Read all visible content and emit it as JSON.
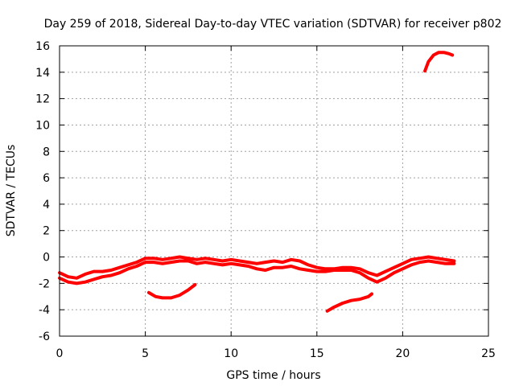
{
  "chart_data": {
    "type": "line",
    "title": "Day 259 of 2018, Sidereal Day-to-day VTEC variation (SDTVAR) for receiver p802",
    "xlabel": "GPS time / hours",
    "ylabel": "SDTVAR / TECUs",
    "xlim": [
      0,
      25
    ],
    "ylim": [
      -6,
      16
    ],
    "xticks": [
      0,
      5,
      10,
      15,
      20,
      25
    ],
    "yticks": [
      -6,
      -4,
      -2,
      0,
      2,
      4,
      6,
      8,
      10,
      12,
      14,
      16
    ],
    "grid": true,
    "color": "#ff0000",
    "series": [
      {
        "name": "main-band-upper",
        "x": [
          0.0,
          0.5,
          1.0,
          1.5,
          2.0,
          2.5,
          3.0,
          3.5,
          4.0,
          4.5,
          5.0,
          5.5,
          6.0,
          6.5,
          7.0,
          7.5,
          8.0,
          8.5,
          9.0,
          9.5,
          10.0,
          10.5,
          11.0,
          11.5,
          12.0,
          12.5,
          13.0,
          13.5,
          14.0,
          14.5,
          15.0,
          15.5,
          16.0,
          16.5,
          17.0,
          17.5,
          18.0,
          18.5,
          19.0,
          19.5,
          20.0,
          20.5,
          21.0,
          21.5,
          22.0,
          22.5,
          23.0
        ],
        "values": [
          -1.2,
          -1.5,
          -1.6,
          -1.3,
          -1.1,
          -1.1,
          -1.0,
          -0.8,
          -0.6,
          -0.4,
          -0.1,
          -0.1,
          -0.2,
          -0.1,
          0.0,
          -0.1,
          -0.2,
          -0.1,
          -0.2,
          -0.3,
          -0.2,
          -0.3,
          -0.4,
          -0.5,
          -0.4,
          -0.3,
          -0.4,
          -0.2,
          -0.3,
          -0.6,
          -0.8,
          -0.9,
          -0.9,
          -0.8,
          -0.8,
          -0.9,
          -1.2,
          -1.4,
          -1.1,
          -0.8,
          -0.5,
          -0.2,
          -0.1,
          0.0,
          -0.1,
          -0.2,
          -0.3
        ]
      },
      {
        "name": "main-band-lower",
        "x": [
          0.0,
          0.5,
          1.0,
          1.5,
          2.0,
          2.5,
          3.0,
          3.5,
          4.0,
          4.5,
          5.0,
          5.5,
          6.0,
          6.5,
          7.0,
          7.5,
          8.0,
          8.5,
          9.0,
          9.5,
          10.0,
          10.5,
          11.0,
          11.5,
          12.0,
          12.5,
          13.0,
          13.5,
          14.0,
          14.5,
          15.0,
          15.5,
          16.0,
          16.5,
          17.0,
          17.5,
          18.0,
          18.5,
          19.0,
          19.5,
          20.0,
          20.5,
          21.0,
          21.5,
          22.0,
          22.5,
          23.0
        ],
        "values": [
          -1.6,
          -1.9,
          -2.0,
          -1.9,
          -1.7,
          -1.5,
          -1.4,
          -1.2,
          -0.9,
          -0.7,
          -0.4,
          -0.4,
          -0.5,
          -0.4,
          -0.3,
          -0.3,
          -0.5,
          -0.4,
          -0.5,
          -0.6,
          -0.5,
          -0.6,
          -0.7,
          -0.9,
          -1.0,
          -0.8,
          -0.8,
          -0.7,
          -0.9,
          -1.0,
          -1.1,
          -1.1,
          -1.0,
          -1.0,
          -1.0,
          -1.2,
          -1.6,
          -1.9,
          -1.6,
          -1.2,
          -0.9,
          -0.6,
          -0.4,
          -0.3,
          -0.4,
          -0.5,
          -0.5
        ]
      },
      {
        "name": "dip-around-6h",
        "x": [
          5.2,
          5.6,
          6.0,
          6.5,
          7.0,
          7.5,
          7.9
        ],
        "values": [
          -2.7,
          -3.0,
          -3.1,
          -3.1,
          -2.9,
          -2.5,
          -2.1
        ]
      },
      {
        "name": "dip-around-17h",
        "x": [
          15.6,
          16.0,
          16.5,
          17.0,
          17.5,
          18.0,
          18.2
        ],
        "values": [
          -4.1,
          -3.8,
          -3.5,
          -3.3,
          -3.2,
          -3.0,
          -2.8
        ]
      },
      {
        "name": "spike-around-22h",
        "x": [
          21.3,
          21.5,
          21.8,
          22.1,
          22.4,
          22.7,
          22.9
        ],
        "values": [
          14.1,
          14.8,
          15.3,
          15.5,
          15.5,
          15.4,
          15.3
        ]
      }
    ]
  }
}
